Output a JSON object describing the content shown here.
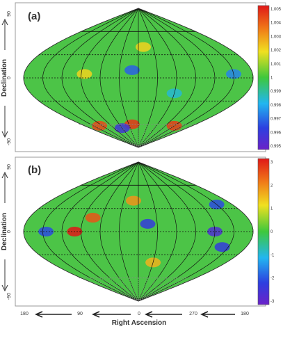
{
  "chart_data": [
    {
      "type": "heatmap",
      "panel_label": "(a)",
      "projection": "Sanson-Flamsteed (sinusoidal) sky map",
      "ylabel": "Declination",
      "y_ticks": [
        "90",
        "0",
        "-90"
      ],
      "colorbar": {
        "ticks": [
          "1.005",
          "1.004",
          "1.003",
          "1.002",
          "1.001",
          "1",
          "0.999",
          "0.998",
          "0.997",
          "0.996",
          "0.995"
        ],
        "range": [
          0.995,
          1.005
        ],
        "colormap": "rainbow (violet-blue-cyan-green-yellow-red)"
      },
      "dominant_value": 1.0,
      "hotspots": [
        {
          "ra": 85,
          "dec": 5,
          "value": 1.002
        },
        {
          "ra": -10,
          "dec": 40,
          "value": 1.002
        },
        {
          "ra": 20,
          "dec": -60,
          "value": 1.0045
        },
        {
          "ra": 130,
          "dec": -62,
          "value": 1.0042
        },
        {
          "ra": -120,
          "dec": -62,
          "value": 1.0044
        },
        {
          "ra": -150,
          "dec": 5,
          "value": 0.9975
        },
        {
          "ra": 10,
          "dec": 10,
          "value": 0.997
        },
        {
          "ra": -60,
          "dec": -20,
          "value": 0.9985
        },
        {
          "ra": 60,
          "dec": -65,
          "value": 0.996
        }
      ]
    },
    {
      "type": "heatmap",
      "panel_label": "(b)",
      "projection": "Sanson-Flamsteed (sinusoidal) sky map",
      "ylabel": "Declination",
      "y_ticks": [
        "90",
        "0",
        "-90"
      ],
      "xlabel": "Right Ascension",
      "x_ticks": [
        "180",
        "90",
        "0",
        "270",
        "180"
      ],
      "colorbar": {
        "ticks": [
          "3",
          "2",
          "1",
          "0",
          "-1",
          "-2",
          "-3"
        ],
        "range": [
          -3,
          3
        ],
        "colormap": "rainbow (violet-blue-cyan-green-yellow-red)"
      },
      "dominant_value": 0,
      "hotspots": [
        {
          "ra": 100,
          "dec": 0,
          "value": 3.0
        },
        {
          "ra": 75,
          "dec": 18,
          "value": 2.4
        },
        {
          "ra": 10,
          "dec": 40,
          "value": 1.8
        },
        {
          "ra": -15,
          "dec": 10,
          "value": -2.2
        },
        {
          "ra": -120,
          "dec": 0,
          "value": -2.6
        },
        {
          "ra": -140,
          "dec": -20,
          "value": -2.2
        },
        {
          "ra": -150,
          "dec": 35,
          "value": -2.0
        },
        {
          "ra": 145,
          "dec": 0,
          "value": -2.0
        },
        {
          "ra": -30,
          "dec": -40,
          "value": 1.5
        }
      ]
    }
  ]
}
